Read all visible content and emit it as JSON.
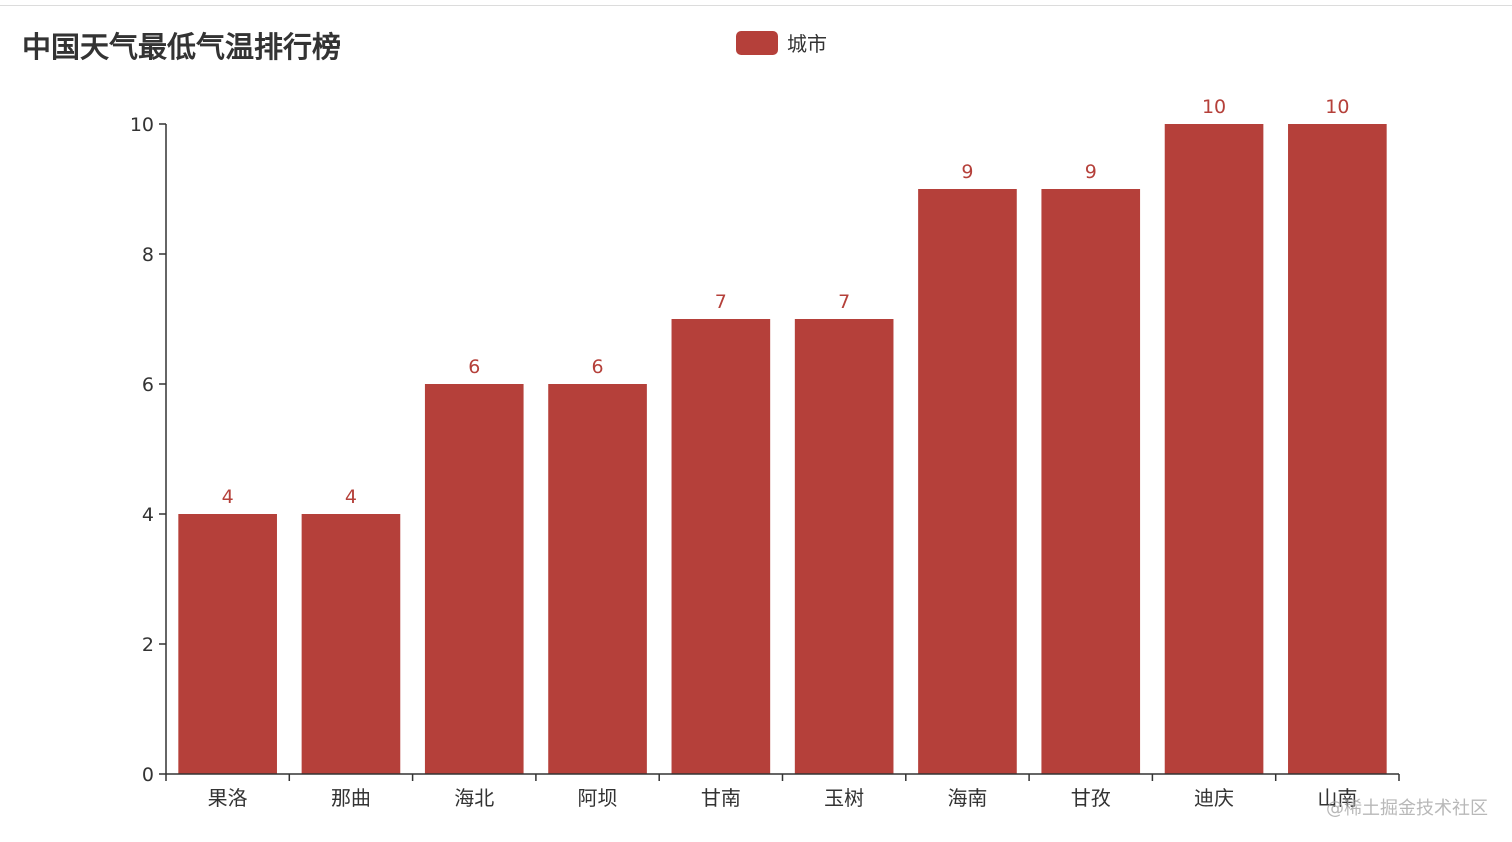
{
  "chart_data": {
    "type": "bar",
    "title": "中国天气最低气温排行榜",
    "categories": [
      "果洛",
      "那曲",
      "海北",
      "阿坝",
      "甘南",
      "玉树",
      "海南",
      "甘孜",
      "迪庆",
      "山南"
    ],
    "series": [
      {
        "name": "城市",
        "values": [
          4,
          4,
          6,
          6,
          7,
          7,
          9,
          9,
          10,
          10
        ],
        "color": "#b5403a"
      }
    ],
    "ylim": [
      0,
      10
    ],
    "yticks": [
      0,
      2,
      4,
      6,
      8,
      10
    ],
    "legend_position": "top-center",
    "grid": false
  },
  "watermark": "@稀土掘金技术社区",
  "colors": {
    "bar": "#b5403a",
    "label": "#b5403a",
    "axis": "#333333",
    "text": "#333333"
  }
}
